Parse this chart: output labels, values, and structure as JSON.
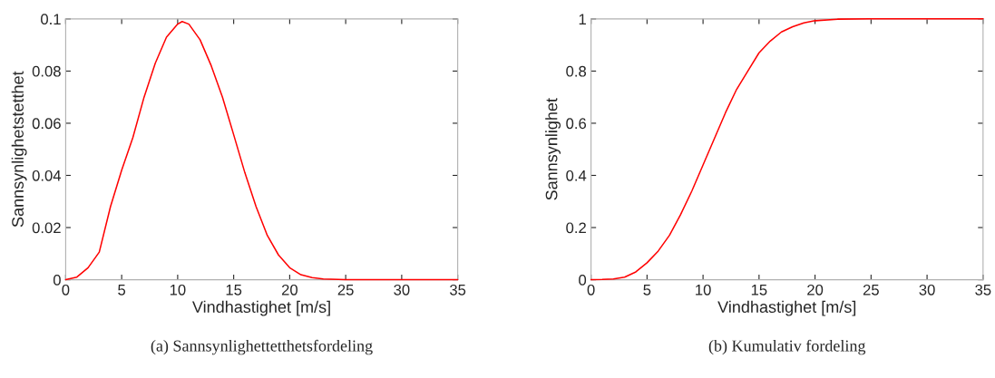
{
  "chart_data": [
    {
      "type": "line",
      "xlabel": "Vindhastighet [m/s]",
      "ylabel": "Sannsynlighetstetthet",
      "annotations": [
        "(a) Sannsynlighettetthetsfordeling"
      ],
      "x": [
        0,
        1,
        2,
        3,
        4,
        5,
        6,
        7,
        8,
        9,
        10,
        10.4,
        11,
        12,
        13,
        14,
        15,
        16,
        17,
        18,
        19,
        20,
        21,
        22,
        23,
        25,
        35
      ],
      "series": [
        {
          "color": "#ff0000",
          "values": [
            0,
            0.001,
            0.0046,
            0.0106,
            0.028,
            0.042,
            0.0545,
            0.07,
            0.083,
            0.093,
            0.098,
            0.099,
            0.098,
            0.092,
            0.082,
            0.07,
            0.0556,
            0.041,
            0.028,
            0.017,
            0.0095,
            0.0046,
            0.0019,
            0.0008,
            0.0003,
            0,
            0
          ]
        }
      ],
      "xlim": [
        0,
        35
      ],
      "xticks": [
        0,
        5,
        10,
        15,
        20,
        25,
        30,
        35
      ],
      "ylim": [
        0,
        0.1
      ],
      "yticks": [
        0,
        0.02,
        0.04,
        0.06,
        0.08,
        0.1
      ],
      "grid": false,
      "legend": false
    },
    {
      "type": "line",
      "xlabel": "Vindhastighet [m/s]",
      "ylabel": "Sannsynlighet",
      "annotations": [
        "(b) Kumulativ fordeling"
      ],
      "x": [
        0,
        1,
        2,
        3,
        4,
        5,
        6,
        7,
        8,
        9,
        10,
        11,
        12,
        13,
        14,
        15,
        16,
        17,
        18,
        19,
        20,
        22,
        25,
        35
      ],
      "series": [
        {
          "color": "#ff0000",
          "values": [
            0,
            0.001,
            0.003,
            0.01,
            0.03,
            0.065,
            0.11,
            0.17,
            0.25,
            0.34,
            0.44,
            0.54,
            0.64,
            0.73,
            0.8,
            0.87,
            0.915,
            0.95,
            0.97,
            0.985,
            0.993,
            0.999,
            1,
            1
          ]
        }
      ],
      "xlim": [
        0,
        35
      ],
      "xticks": [
        0,
        5,
        10,
        15,
        20,
        25,
        30,
        35
      ],
      "ylim": [
        0,
        1
      ],
      "yticks": [
        0,
        0.2,
        0.4,
        0.6,
        0.8,
        1
      ],
      "grid": false,
      "legend": false
    }
  ]
}
